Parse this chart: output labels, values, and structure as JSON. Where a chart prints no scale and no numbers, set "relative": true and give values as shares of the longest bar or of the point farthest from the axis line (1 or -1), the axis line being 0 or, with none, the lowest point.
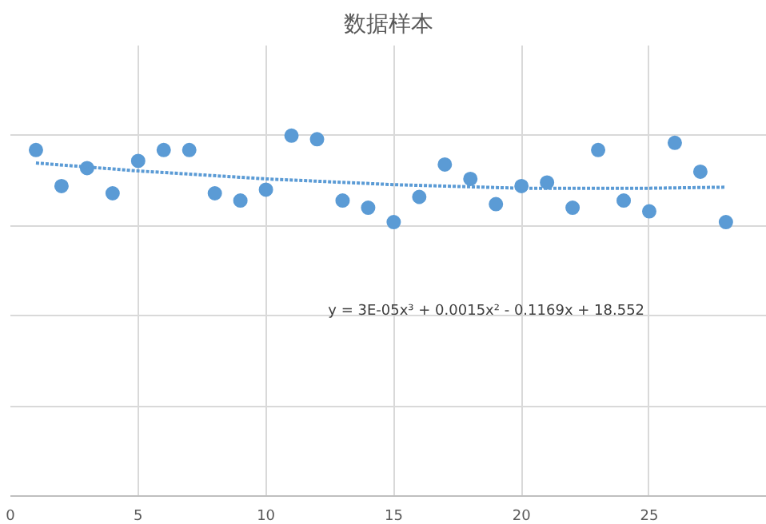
{
  "chart_data": {
    "type": "scatter",
    "title": "数据样本",
    "relative": true,
    "grid": true,
    "marker": "circle",
    "xlim": [
      0,
      29.6
    ],
    "xticks": [
      0,
      5,
      10,
      15,
      20,
      25
    ],
    "x": [
      1,
      2,
      3,
      4,
      5,
      6,
      7,
      8,
      9,
      10,
      11,
      12,
      13,
      14,
      15,
      16,
      17,
      18,
      19,
      20,
      21,
      22,
      23,
      24,
      25,
      26,
      27,
      28
    ],
    "series": [
      {
        "color": "#5b9bd5",
        "values": [
          0.96,
          0.86,
          0.91,
          0.84,
          0.93,
          0.96,
          0.96,
          0.84,
          0.82,
          0.85,
          1.0,
          0.99,
          0.82,
          0.8,
          0.76,
          0.83,
          0.92,
          0.88,
          0.81,
          0.86,
          0.87,
          0.8,
          0.96,
          0.82,
          0.79,
          0.98,
          0.9,
          0.76
        ]
      },
      {
        "type": "line",
        "line_style": "dotted",
        "marker": "none",
        "color": "#5b9bd5",
        "x": [
          1,
          5,
          10,
          15,
          20,
          25,
          28
        ],
        "values": [
          0.924,
          0.902,
          0.88,
          0.864,
          0.854,
          0.854,
          0.857
        ]
      }
    ],
    "annotations": [
      "y = 3E-05x³ + 0.0015x² - 0.1169x + 18.552"
    ]
  }
}
